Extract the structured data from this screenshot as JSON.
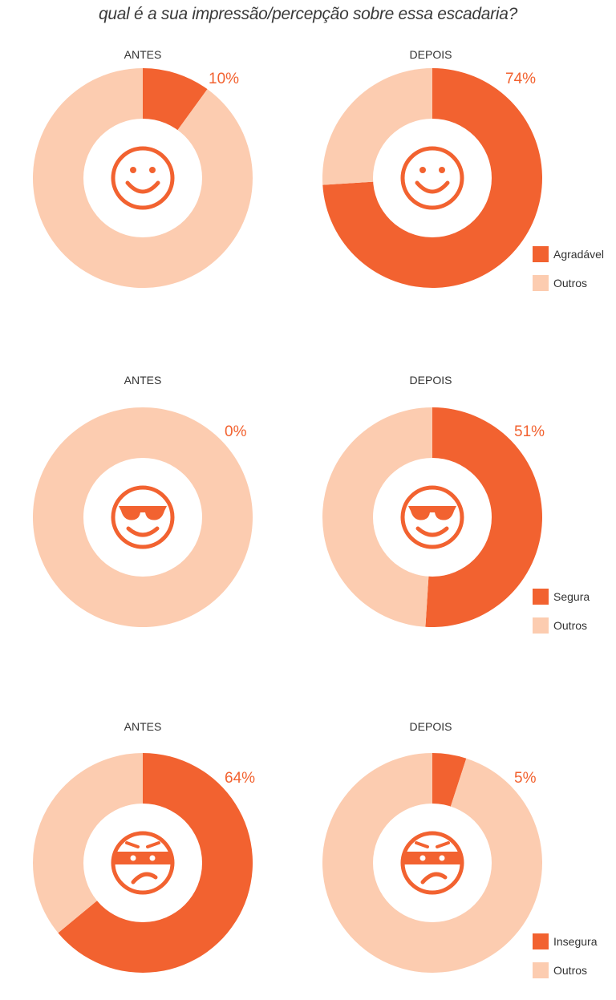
{
  "title": "qual é a sua impressão/percepção sobre essa escadaria?",
  "colors": {
    "highlight": "#f26230",
    "others": "#fcccb0",
    "icon": "#f26230"
  },
  "chart_data": [
    {
      "type": "pie",
      "style": "donut",
      "row": 0,
      "panels": [
        {
          "label": "ANTES",
          "value_label": "10%",
          "slices": [
            {
              "name": "Agradável",
              "value": 10
            },
            {
              "name": "Outros",
              "value": 90
            }
          ]
        },
        {
          "label": "DEPOIS",
          "value_label": "74%",
          "slices": [
            {
              "name": "Agradável",
              "value": 74
            },
            {
              "name": "Outros",
              "value": 26
            }
          ]
        }
      ],
      "legend": [
        "Agradável",
        "Outros"
      ],
      "icon": "smiley-face-icon"
    },
    {
      "type": "pie",
      "style": "donut",
      "row": 1,
      "panels": [
        {
          "label": "ANTES",
          "value_label": "0%",
          "slices": [
            {
              "name": "Segura",
              "value": 0
            },
            {
              "name": "Outros",
              "value": 100
            }
          ]
        },
        {
          "label": "DEPOIS",
          "value_label": "51%",
          "slices": [
            {
              "name": "Segura",
              "value": 51
            },
            {
              "name": "Outros",
              "value": 49
            }
          ]
        }
      ],
      "legend": [
        "Segura",
        "Outros"
      ],
      "icon": "sunglasses-face-icon"
    },
    {
      "type": "pie",
      "style": "donut",
      "row": 2,
      "panels": [
        {
          "label": "ANTES",
          "value_label": "64%",
          "slices": [
            {
              "name": "Insegura",
              "value": 64
            },
            {
              "name": "Outros",
              "value": 36
            }
          ]
        },
        {
          "label": "DEPOIS",
          "value_label": "5%",
          "slices": [
            {
              "name": "Insegura",
              "value": 5
            },
            {
              "name": "Outros",
              "value": 95
            }
          ]
        }
      ],
      "legend": [
        "Insegura",
        "Outros"
      ],
      "icon": "bandit-face-icon"
    }
  ]
}
